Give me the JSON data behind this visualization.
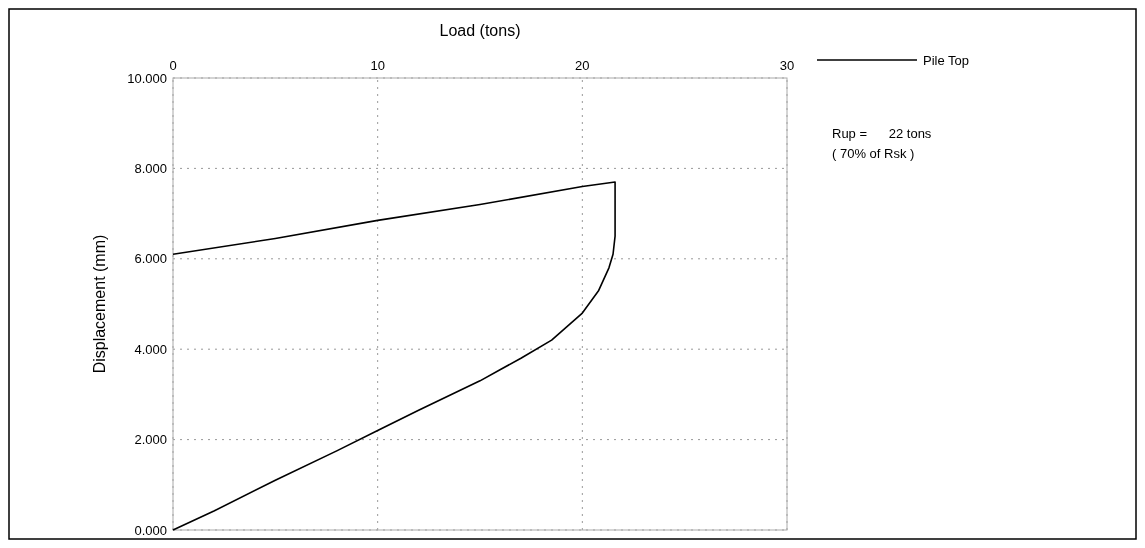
{
  "chart_data": {
    "type": "line",
    "xlabel": "Load (tons)",
    "ylabel": "Displacement (mm)",
    "xlim": [
      0,
      30
    ],
    "xticks": [
      0,
      10,
      20,
      30
    ],
    "ylim": [
      0,
      10
    ],
    "yticks": [
      {
        "value": 0,
        "label": "0.000"
      },
      {
        "value": 2,
        "label": "2.000"
      },
      {
        "value": 4,
        "label": "4.000"
      },
      {
        "value": 6,
        "label": "6.000"
      },
      {
        "value": 8,
        "label": "8.000"
      },
      {
        "value": 10,
        "label": "10.000"
      }
    ],
    "grid": true,
    "legend": "top right",
    "line_style": "solid",
    "marker": "none",
    "series": [
      {
        "name": "Pile Top",
        "color": "#000000",
        "x": [
          0,
          2,
          5,
          8,
          10,
          12,
          15,
          16,
          17,
          18.5,
          20,
          20.8,
          21.3,
          21.5,
          21.6,
          21.6,
          20,
          15,
          10,
          5,
          0
        ],
        "values": [
          0,
          0.42,
          1.1,
          1.75,
          2.2,
          2.65,
          3.3,
          3.55,
          3.8,
          4.2,
          4.8,
          5.3,
          5.8,
          6.1,
          6.5,
          7.7,
          7.6,
          7.2,
          6.85,
          6.45,
          6.1
        ]
      }
    ],
    "annotations": [
      "Rup =      22 tons",
      "( 70% of Rsk )"
    ]
  }
}
